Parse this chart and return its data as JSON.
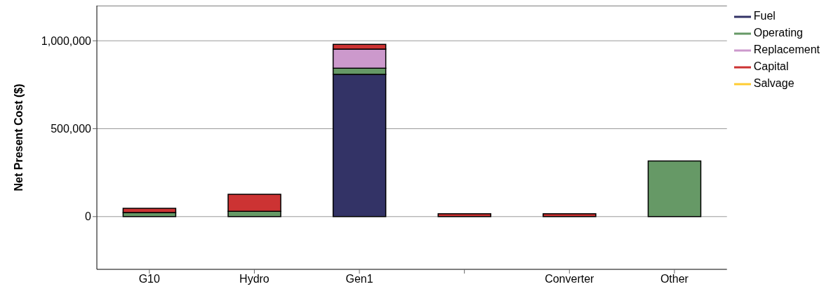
{
  "chart_data": {
    "type": "bar",
    "stacked": true,
    "ylabel": "Net Present Cost ($)",
    "categories": [
      "G10",
      "Hydro",
      "Gen1",
      null,
      "Converter",
      "Other"
    ],
    "series": [
      {
        "name": "Fuel",
        "color": "#333366",
        "values": [
          0,
          0,
          809000,
          0,
          0,
          0
        ]
      },
      {
        "name": "Operating",
        "color": "#669966",
        "values": [
          23000,
          30000,
          35000,
          0,
          0,
          316000
        ]
      },
      {
        "name": "Replacement",
        "color": "#cc99cc",
        "values": [
          0,
          0,
          109000,
          0,
          0,
          0
        ]
      },
      {
        "name": "Capital",
        "color": "#cc3333",
        "values": [
          24000,
          97000,
          27000,
          16000,
          16000,
          0
        ]
      },
      {
        "name": "Salvage",
        "color": "#ffcc33",
        "values": [
          0,
          0,
          0,
          0,
          0,
          0
        ]
      }
    ],
    "ylim": [
      -300000,
      1200000
    ],
    "yticks": [
      {
        "value": 0,
        "label": "0"
      },
      {
        "value": 500000,
        "label": "500,000"
      },
      {
        "value": 1000000,
        "label": "1,000,000"
      }
    ],
    "grid": "y",
    "legend": "top right"
  }
}
